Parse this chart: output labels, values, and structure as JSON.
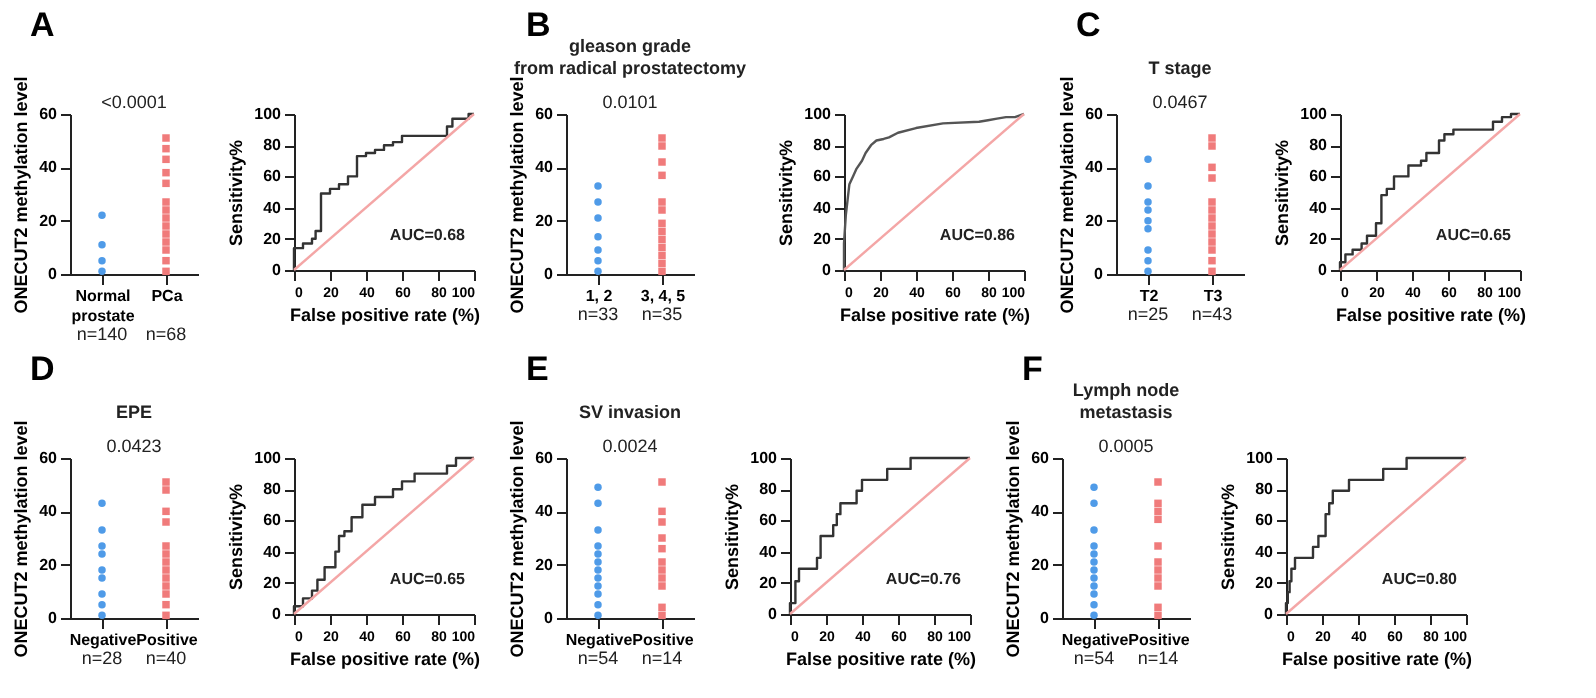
{
  "chart_data": [
    {
      "type": "scatter",
      "title": "A",
      "ylabel": "ONECUT2 methylation level",
      "categories": [
        "Normal\nprostate",
        "PCa"
      ],
      "ylim": [
        0,
        60
      ],
      "yticks": [
        0,
        20,
        40,
        60
      ],
      "grid": false,
      "annotations": [
        "<0.0001",
        "n=140",
        "n=68"
      ],
      "series": [
        {
          "color": "#4f9be8",
          "marker": "circle",
          "x": [
            "Normal\nprostate",
            "Normal\nprostate",
            "Normal\nprostate",
            "Normal\nprostate"
          ],
          "values": [
            22,
            11,
            5,
            1
          ]
        },
        {
          "color": "#f07b7b",
          "marker": "square",
          "x": [
            "PCa",
            "PCa",
            "PCa",
            "PCa",
            "PCa",
            "PCa",
            "PCa",
            "PCa",
            "PCa",
            "PCa",
            "PCa",
            "PCa",
            "PCa",
            "PCa"
          ],
          "values": [
            51,
            47,
            43,
            38,
            34,
            27,
            24,
            21,
            18,
            15,
            12,
            9,
            5,
            1
          ]
        }
      ]
    },
    {
      "type": "line",
      "xlabel": "False positive rate (%)",
      "ylabel": "Sensitivity%",
      "xlim": [
        0,
        100
      ],
      "ylim": [
        0,
        100
      ],
      "xticks": [
        0,
        20,
        40,
        60,
        80,
        100
      ],
      "yticks": [
        0,
        20,
        40,
        60,
        80,
        100
      ],
      "grid": false,
      "annotations": [
        "AUC=0.68"
      ],
      "series": [
        {
          "color": "#333333",
          "x": [
            0,
            0,
            5,
            5,
            10,
            10,
            12,
            12,
            15,
            15,
            20,
            20,
            25,
            25,
            30,
            30,
            35,
            35,
            40,
            40,
            45,
            45,
            50,
            50,
            55,
            55,
            60,
            60,
            85,
            85,
            88,
            88,
            97,
            97,
            100
          ],
          "values": [
            0,
            14,
            14,
            17,
            17,
            20,
            20,
            25,
            25,
            49,
            49,
            52,
            52,
            55,
            55,
            60,
            60,
            73,
            73,
            75,
            75,
            77,
            77,
            80,
            80,
            82,
            82,
            86,
            86,
            92,
            92,
            97,
            97,
            100,
            100
          ]
        },
        {
          "color": "#f4a6a6",
          "x": [
            0,
            100
          ],
          "values": [
            0,
            100
          ]
        }
      ]
    },
    {
      "type": "scatter",
      "title": "B",
      "subtitle": "gleason grade\nfrom radical prostatectomy",
      "ylabel": "ONECUT2 methylation level",
      "categories": [
        "1, 2",
        "3, 4, 5"
      ],
      "ylim": [
        0,
        60
      ],
      "yticks": [
        0,
        20,
        40,
        60
      ],
      "grid": false,
      "annotations": [
        "0.0101",
        "n=33",
        "n=35"
      ],
      "series": [
        {
          "color": "#4f9be8",
          "marker": "circle",
          "x": [
            "1, 2",
            "1, 2",
            "1, 2",
            "1, 2",
            "1, 2",
            "1, 2",
            "1, 2"
          ],
          "values": [
            33,
            27,
            21,
            14,
            9,
            5,
            1
          ]
        },
        {
          "color": "#f07b7b",
          "marker": "square",
          "x": [
            "3, 4, 5",
            "3, 4, 5",
            "3, 4, 5",
            "3, 4, 5",
            "3, 4, 5",
            "3, 4, 5",
            "3, 4, 5",
            "3, 4, 5",
            "3, 4, 5",
            "3, 4, 5",
            "3, 4, 5",
            "3, 4, 5",
            "3, 4, 5"
          ],
          "values": [
            51,
            48,
            42,
            37,
            27,
            24,
            19,
            16,
            13,
            10,
            7,
            4,
            1
          ]
        }
      ]
    },
    {
      "type": "line",
      "xlabel": "False positive rate (%)",
      "ylabel": "Sensitivity%",
      "xlim": [
        0,
        100
      ],
      "ylim": [
        0,
        100
      ],
      "xticks": [
        0,
        20,
        40,
        60,
        80,
        100
      ],
      "yticks": [
        0,
        20,
        40,
        60,
        80,
        100
      ],
      "grid": false,
      "annotations": [
        "AUC=0.86"
      ],
      "series": [
        {
          "color": "#555555",
          "x": [
            0,
            0,
            1,
            2,
            3,
            5,
            7,
            10,
            12,
            15,
            18,
            22,
            25,
            30,
            40,
            55,
            75,
            80,
            85,
            90,
            95,
            100
          ],
          "values": [
            0,
            17,
            35,
            45,
            55,
            60,
            65,
            70,
            75,
            80,
            83,
            84,
            85,
            88,
            91,
            94,
            95,
            96,
            97,
            98,
            98,
            100
          ]
        },
        {
          "color": "#f4a6a6",
          "x": [
            0,
            100
          ],
          "values": [
            0,
            100
          ]
        }
      ]
    },
    {
      "type": "scatter",
      "title": "C",
      "subtitle": "T stage",
      "ylabel": "ONECUT2 methylation level",
      "categories": [
        "T2",
        "T3"
      ],
      "ylim": [
        0,
        60
      ],
      "yticks": [
        0,
        20,
        40,
        60
      ],
      "grid": false,
      "annotations": [
        "0.0467",
        "n=25",
        "n=43"
      ],
      "series": [
        {
          "color": "#4f9be8",
          "marker": "circle",
          "x": [
            "T2",
            "T2",
            "T2",
            "T2",
            "T2",
            "T2",
            "T2",
            "T2",
            "T2"
          ],
          "values": [
            43,
            33,
            27,
            24,
            20,
            17,
            9,
            5,
            1
          ]
        },
        {
          "color": "#f07b7b",
          "marker": "square",
          "x": [
            "T3",
            "T3",
            "T3",
            "T3",
            "T3",
            "T3",
            "T3",
            "T3",
            "T3",
            "T3",
            "T3",
            "T3",
            "T3"
          ],
          "values": [
            51,
            48,
            40,
            36,
            27,
            24,
            21,
            18,
            15,
            12,
            9,
            5,
            1
          ]
        }
      ]
    },
    {
      "type": "line",
      "xlabel": "False positive rate (%)",
      "ylabel": "Sensitivity%",
      "xlim": [
        0,
        100
      ],
      "ylim": [
        0,
        100
      ],
      "xticks": [
        0,
        20,
        40,
        60,
        80,
        100
      ],
      "yticks": [
        0,
        20,
        40,
        60,
        80,
        100
      ],
      "grid": false,
      "annotations": [
        "AUC=0.65"
      ],
      "series": [
        {
          "color": "#333333",
          "x": [
            0,
            0,
            3,
            3,
            7,
            7,
            12,
            12,
            15,
            15,
            20,
            20,
            23,
            23,
            26,
            26,
            30,
            30,
            38,
            38,
            45,
            45,
            48,
            48,
            55,
            55,
            58,
            58,
            63,
            63,
            85,
            85,
            90,
            90,
            95,
            95,
            100
          ],
          "values": [
            0,
            5,
            5,
            10,
            10,
            13,
            13,
            17,
            17,
            22,
            22,
            30,
            30,
            48,
            48,
            52,
            52,
            60,
            60,
            67,
            67,
            70,
            70,
            75,
            75,
            83,
            83,
            87,
            87,
            90,
            90,
            95,
            95,
            98,
            98,
            100,
            100
          ]
        },
        {
          "color": "#f4a6a6",
          "x": [
            0,
            100
          ],
          "values": [
            0,
            100
          ]
        }
      ]
    },
    {
      "type": "scatter",
      "title": "D",
      "subtitle": "EPE",
      "ylabel": "ONECUT2 methylation level",
      "categories": [
        "Negative",
        "Positive"
      ],
      "ylim": [
        0,
        60
      ],
      "yticks": [
        0,
        20,
        40,
        60
      ],
      "grid": false,
      "annotations": [
        "0.0423",
        "n=28",
        "n=40"
      ],
      "series": [
        {
          "color": "#4f9be8",
          "marker": "circle",
          "x": [
            "Negative",
            "Negative",
            "Negative",
            "Negative",
            "Negative",
            "Negative",
            "Negative",
            "Negative",
            "Negative"
          ],
          "values": [
            43,
            33,
            27,
            24,
            18,
            15,
            9,
            5,
            1
          ]
        },
        {
          "color": "#f07b7b",
          "marker": "square",
          "x": [
            "Positive",
            "Positive",
            "Positive",
            "Positive",
            "Positive",
            "Positive",
            "Positive",
            "Positive",
            "Positive",
            "Positive",
            "Positive",
            "Positive",
            "Positive"
          ],
          "values": [
            51,
            48,
            40,
            36,
            27,
            24,
            21,
            18,
            15,
            12,
            9,
            5,
            1
          ]
        }
      ]
    },
    {
      "type": "line",
      "xlabel": "False positive rate (%)",
      "ylabel": "Sensitivity%",
      "xlim": [
        0,
        100
      ],
      "ylim": [
        0,
        100
      ],
      "xticks": [
        0,
        20,
        40,
        60,
        80,
        100
      ],
      "yticks": [
        0,
        20,
        40,
        60,
        80,
        100
      ],
      "grid": false,
      "annotations": [
        "AUC=0.65"
      ],
      "series": [
        {
          "color": "#333333",
          "x": [
            0,
            0,
            5,
            5,
            10,
            10,
            13,
            13,
            17,
            17,
            23,
            23,
            25,
            25,
            28,
            28,
            32,
            32,
            38,
            38,
            45,
            45,
            55,
            55,
            60,
            60,
            67,
            67,
            85,
            85,
            90,
            90,
            100
          ],
          "values": [
            0,
            5,
            5,
            10,
            10,
            15,
            15,
            22,
            22,
            30,
            30,
            40,
            40,
            50,
            50,
            53,
            53,
            62,
            62,
            70,
            70,
            75,
            75,
            80,
            80,
            85,
            85,
            90,
            90,
            95,
            95,
            100,
            100
          ]
        },
        {
          "color": "#f4a6a6",
          "x": [
            0,
            100
          ],
          "values": [
            0,
            100
          ]
        }
      ]
    },
    {
      "type": "scatter",
      "title": "E",
      "subtitle": "SV invasion",
      "ylabel": "ONECUT2 methylation level",
      "categories": [
        "Negative",
        "Positive"
      ],
      "ylim": [
        0,
        60
      ],
      "yticks": [
        0,
        20,
        40,
        60
      ],
      "grid": false,
      "annotations": [
        "0.0024",
        "n=54",
        "n=14"
      ],
      "series": [
        {
          "color": "#4f9be8",
          "marker": "circle",
          "x": [
            "Negative",
            "Negative",
            "Negative",
            "Negative",
            "Negative",
            "Negative",
            "Negative",
            "Negative",
            "Negative",
            "Negative",
            "Negative",
            "Negative"
          ],
          "values": [
            49,
            43,
            33,
            27,
            24,
            21,
            18,
            15,
            12,
            9,
            5,
            1
          ]
        },
        {
          "color": "#f07b7b",
          "marker": "square",
          "x": [
            "Positive",
            "Positive",
            "Positive",
            "Positive",
            "Positive",
            "Positive",
            "Positive",
            "Positive",
            "Positive",
            "Positive",
            "Positive"
          ],
          "values": [
            51,
            40,
            36,
            30,
            26,
            21,
            18,
            15,
            12,
            4,
            1
          ]
        }
      ]
    },
    {
      "type": "line",
      "xlabel": "False positive rate (%)",
      "ylabel": "Sensitivity%",
      "xlim": [
        0,
        100
      ],
      "ylim": [
        0,
        100
      ],
      "xticks": [
        0,
        20,
        40,
        60,
        80,
        100
      ],
      "yticks": [
        0,
        20,
        40,
        60,
        80,
        100
      ],
      "grid": false,
      "annotations": [
        "AUC=0.76"
      ],
      "series": [
        {
          "color": "#333333",
          "x": [
            0,
            0,
            3,
            3,
            5,
            5,
            15,
            15,
            17,
            17,
            24,
            24,
            26,
            26,
            28,
            28,
            37,
            37,
            40,
            40,
            54,
            54,
            67,
            67,
            100
          ],
          "values": [
            0,
            7,
            7,
            21,
            21,
            29,
            29,
            36,
            36,
            50,
            50,
            57,
            57,
            64,
            64,
            71,
            71,
            79,
            79,
            86,
            86,
            93,
            93,
            100,
            100
          ]
        },
        {
          "color": "#f4a6a6",
          "x": [
            0,
            100
          ],
          "values": [
            0,
            100
          ]
        }
      ]
    },
    {
      "type": "scatter",
      "title": "F",
      "subtitle": "Lymph node\nmetastasis",
      "ylabel": "ONECUT2 methylation level",
      "categories": [
        "Negative",
        "Positive"
      ],
      "ylim": [
        0,
        60
      ],
      "yticks": [
        0,
        20,
        40,
        60
      ],
      "grid": false,
      "annotations": [
        "0.0005",
        "n=54",
        "n=14"
      ],
      "series": [
        {
          "color": "#4f9be8",
          "marker": "circle",
          "x": [
            "Negative",
            "Negative",
            "Negative",
            "Negative",
            "Negative",
            "Negative",
            "Negative",
            "Negative",
            "Negative",
            "Negative",
            "Negative",
            "Negative"
          ],
          "values": [
            49,
            43,
            33,
            27,
            24,
            21,
            18,
            15,
            12,
            9,
            5,
            1
          ]
        },
        {
          "color": "#f07b7b",
          "marker": "square",
          "x": [
            "Positive",
            "Positive",
            "Positive",
            "Positive",
            "Positive",
            "Positive",
            "Positive",
            "Positive",
            "Positive",
            "Positive",
            "Positive"
          ],
          "values": [
            51,
            43,
            40,
            37,
            27,
            21,
            18,
            15,
            12,
            4,
            1
          ]
        }
      ]
    },
    {
      "type": "line",
      "xlabel": "False positive rate (%)",
      "ylabel": "Sensitivity%",
      "xlim": [
        0,
        100
      ],
      "ylim": [
        0,
        100
      ],
      "xticks": [
        0,
        20,
        40,
        60,
        80,
        100
      ],
      "yticks": [
        0,
        20,
        40,
        60,
        80,
        100
      ],
      "grid": false,
      "annotations": [
        "AUC=0.80"
      ],
      "series": [
        {
          "color": "#333333",
          "x": [
            0,
            0,
            1,
            1,
            2,
            2,
            3,
            3,
            5,
            5,
            15,
            15,
            18,
            18,
            22,
            22,
            24,
            24,
            26,
            26,
            35,
            35,
            54,
            54,
            67,
            67,
            100
          ],
          "values": [
            0,
            7,
            7,
            14,
            14,
            21,
            21,
            29,
            29,
            36,
            36,
            43,
            43,
            50,
            50,
            64,
            64,
            71,
            71,
            79,
            79,
            86,
            86,
            93,
            93,
            100,
            100
          ]
        },
        {
          "color": "#f4a6a6",
          "x": [
            0,
            100
          ],
          "values": [
            0,
            100
          ]
        }
      ]
    }
  ]
}
